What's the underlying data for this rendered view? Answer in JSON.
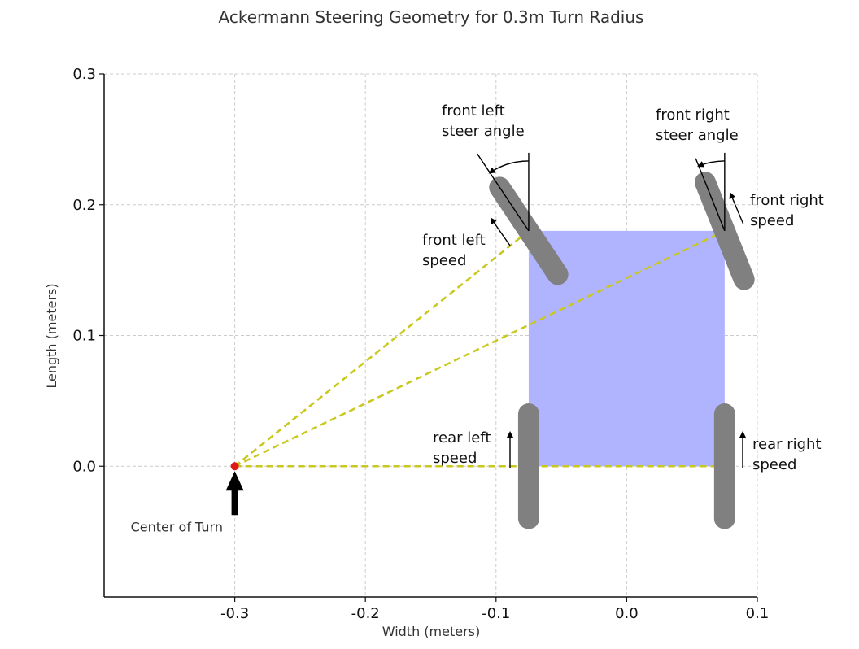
{
  "title": "Ackermann Steering Geometry for 0.3m Turn Radius",
  "colors": {
    "chassis": "#b0b4ff",
    "wheel": "#808080",
    "turn_lines": "#c8c81e",
    "center_point": "#e01818",
    "arrow": "#000000"
  },
  "chart_data": {
    "type": "diagram",
    "xlabel": "Width (meters)",
    "ylabel": "Length (meters)",
    "xlim": [
      -0.4,
      0.1
    ],
    "ylim": [
      -0.1,
      0.3
    ],
    "grid": true,
    "xticks": [
      {
        "value": -0.3,
        "label": "-0.3"
      },
      {
        "value": -0.2,
        "label": "-0.2"
      },
      {
        "value": -0.1,
        "label": "-0.1"
      },
      {
        "value": 0.0,
        "label": "0.0"
      },
      {
        "value": 0.1,
        "label": "0.1"
      }
    ],
    "yticks": [
      {
        "value": 0.0,
        "label": "0.0"
      },
      {
        "value": 0.1,
        "label": "0.1"
      },
      {
        "value": 0.2,
        "label": "0.2"
      },
      {
        "value": 0.3,
        "label": "0.3"
      }
    ],
    "chassis": {
      "x_min": -0.075,
      "x_max": 0.075,
      "y_min": 0.0,
      "y_max": 0.18
    },
    "center_of_turn": {
      "x": -0.3,
      "y": 0.0,
      "label": "Center of Turn"
    },
    "wheels": [
      {
        "id": "front-left",
        "x": -0.075,
        "y": 0.18,
        "steer_angle_deg": 33.7
      },
      {
        "id": "front-right",
        "x": 0.075,
        "y": 0.18,
        "steer_angle_deg": 21.8
      },
      {
        "id": "rear-left",
        "x": -0.075,
        "y": 0.0,
        "steer_angle_deg": 0
      },
      {
        "id": "rear-right",
        "x": 0.075,
        "y": 0.0,
        "steer_angle_deg": 0
      }
    ],
    "annotations": {
      "front_left_angle": [
        "front left",
        "steer angle"
      ],
      "front_right_angle": [
        "front right",
        "steer angle"
      ],
      "front_left_speed": [
        "front left",
        "speed"
      ],
      "front_right_speed": [
        "front right",
        "speed"
      ],
      "rear_left_speed": [
        "rear left",
        "speed"
      ],
      "rear_right_speed": [
        "rear right",
        "speed"
      ]
    }
  }
}
